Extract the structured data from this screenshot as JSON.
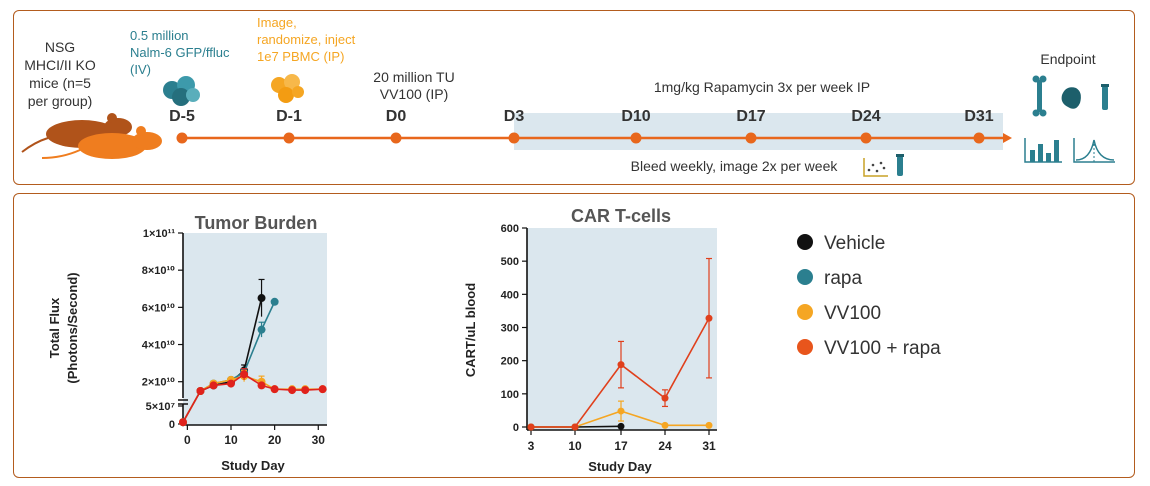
{
  "timeline": {
    "mouse_label": [
      "NSG",
      "MHCI/II KO",
      "mice (n=5",
      "per group)"
    ],
    "tumor_label": [
      "0.5 million",
      "Nalm-6 GFP/ffluc",
      "(IV)"
    ],
    "pbmc_label": [
      "Image,",
      "randomize, inject",
      "1e7 PBMC (IP)"
    ],
    "vv100_label": [
      "20 million TU",
      "VV100 (IP)"
    ],
    "rapa_label": "1mg/kg Rapamycin 3x per week IP",
    "bleed_label": "Bleed weekly, image 2x per week",
    "endpoint_label": "Endpoint",
    "days": [
      "D-5",
      "D-1",
      "D0",
      "D3",
      "D10",
      "D17",
      "D24",
      "D31"
    ],
    "colors": {
      "line": "#e8671c",
      "band": "#dbe7ee",
      "teal": "#2b7f8f",
      "yellow": "#f5a623",
      "mouse_dark": "#b0531a",
      "mouse_light": "#ef7d1f"
    }
  },
  "legend": {
    "items": [
      {
        "label": "Vehicle",
        "color": "#111111"
      },
      {
        "label": "rapa",
        "color": "#2b7f8f"
      },
      {
        "label": "VV100",
        "color": "#f5a623"
      },
      {
        "label": "VV100 + rapa",
        "color": "#e8551c"
      }
    ]
  },
  "chart_data": [
    {
      "type": "line",
      "title": "Tumor Burden",
      "xlabel": "Study Day",
      "ylabel": [
        "Total Flux",
        "(Photons/Second)"
      ],
      "xticks": [
        "0",
        "10",
        "20",
        "30"
      ],
      "xlim": [
        -1,
        32
      ],
      "ytick_labels": [
        "0",
        "5×10⁷",
        "2×10¹⁰",
        "4×10¹⁰",
        "6×10¹⁰",
        "8×10¹⁰",
        "1×10¹¹"
      ],
      "ytick_values": [
        0,
        50000000.0,
        20000000000.0,
        40000000000.0,
        60000000000.0,
        80000000000.0,
        100000000000.0
      ],
      "axis_break": true,
      "grid": false,
      "series": [
        {
          "name": "Vehicle",
          "color": "#111111",
          "x": [
            -1,
            3,
            6,
            10,
            13,
            17
          ],
          "y": [
            5000000.0,
            15000000000.0,
            18000000000.0,
            20000000000.0,
            26000000000.0,
            65000000000.0
          ],
          "err": [
            0,
            0,
            0,
            0,
            3000000000.0,
            10000000000.0
          ]
        },
        {
          "name": "rapa",
          "color": "#2b7f8f",
          "x": [
            -1,
            3,
            6,
            10,
            13,
            17,
            20
          ],
          "y": [
            5000000.0,
            15000000000.0,
            19000000000.0,
            21000000000.0,
            25000000000.0,
            48000000000.0,
            63000000000.0
          ],
          "err": [
            0,
            0,
            0,
            0,
            2000000000.0,
            4000000000.0,
            0
          ]
        },
        {
          "name": "VV100",
          "color": "#f5a623",
          "x": [
            -1,
            3,
            6,
            10,
            13,
            17,
            20,
            24,
            27,
            31
          ],
          "y": [
            5000000.0,
            15000000000.0,
            19000000000.0,
            21000000000.0,
            23000000000.0,
            20000000000.0,
            16000000000.0,
            16000000000.0,
            16000000000.0,
            16000000000.0
          ],
          "err": [
            0,
            0,
            0,
            0,
            3000000000.0,
            3000000000.0,
            0,
            0,
            0,
            1000000000.0
          ]
        },
        {
          "name": "VV100 + rapa",
          "color": "#e0221c",
          "x": [
            -1,
            3,
            6,
            10,
            13,
            17,
            20,
            24,
            27,
            31
          ],
          "y": [
            5000000.0,
            15000000000.0,
            18000000000.0,
            19000000000.0,
            24000000000.0,
            18000000000.0,
            16000000000.0,
            15500000000.0,
            15500000000.0,
            16000000000.0
          ],
          "err": [
            0,
            0,
            0,
            0,
            3000000000.0,
            0,
            0,
            0,
            0,
            1000000000.0
          ]
        }
      ]
    },
    {
      "type": "line",
      "title": "CAR T-cells",
      "xlabel": "Study Day",
      "ylabel": "CART/uL blood",
      "categories": [
        "3",
        "10",
        "17",
        "24",
        "31"
      ],
      "ylim": [
        0,
        600
      ],
      "yticks": [
        0,
        100,
        200,
        300,
        400,
        500,
        600
      ],
      "grid": false,
      "series": [
        {
          "name": "Vehicle",
          "color": "#111111",
          "values": [
            0,
            0,
            2,
            null,
            null
          ],
          "err": [
            0,
            0,
            0,
            null,
            null
          ]
        },
        {
          "name": "VV100",
          "color": "#f5a623",
          "values": [
            0,
            0,
            48,
            5,
            5
          ],
          "err": [
            0,
            0,
            30,
            0,
            0
          ]
        },
        {
          "name": "VV100 + rapa",
          "color": "#e0401c",
          "values": [
            0,
            0,
            188,
            87,
            328
          ],
          "err": [
            0,
            0,
            70,
            25,
            180
          ]
        }
      ]
    }
  ]
}
